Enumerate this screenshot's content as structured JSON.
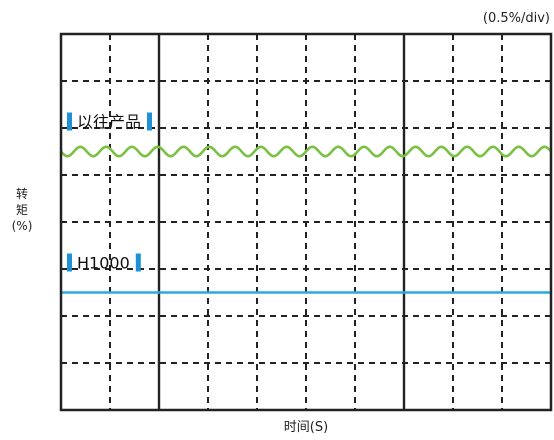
{
  "chart_data": {
    "type": "line",
    "scale_label": "(0.5%/div)",
    "xlabel": "时间(S)",
    "ylabel": [
      "转",
      "矩",
      "(%)"
    ],
    "grid": true,
    "grid_divisions": {
      "x": 10,
      "y": 8
    },
    "grid_color": "#222222",
    "legend_marker_color": "#1e90d6",
    "series": [
      {
        "name": "以往产品",
        "color": "#7ac143",
        "level_div": 5.5,
        "ripple_amplitude_div": 0.1,
        "ripple_cycles": 19
      },
      {
        "name": "H1000",
        "color": "#29abe2",
        "level_div": 2.5,
        "ripple_amplitude_div": 0,
        "ripple_cycles": 0
      }
    ]
  }
}
